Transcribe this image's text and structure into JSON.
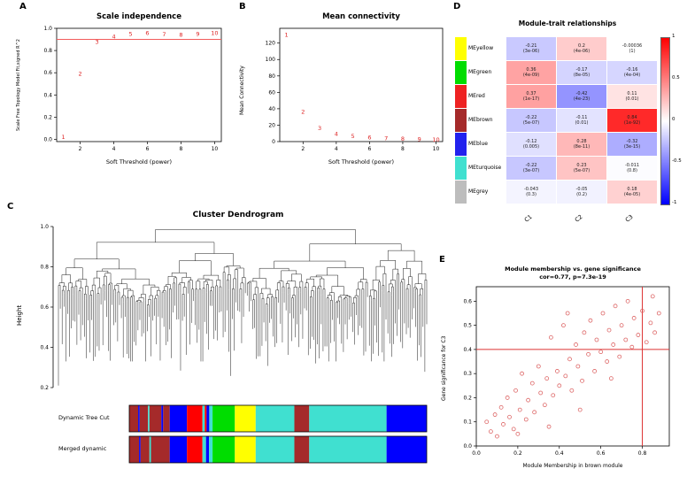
{
  "panels": {
    "A": {
      "label": "A"
    },
    "B": {
      "label": "B"
    },
    "C": {
      "label": "C"
    },
    "D": {
      "label": "D"
    },
    "E": {
      "label": "E"
    }
  },
  "chart_data": [
    {
      "id": "A",
      "type": "scatter",
      "title": "Scale independence",
      "xlabel": "Soft Threshold (power)",
      "ylabel": "Scale Free Topology Model Fit,signed R^2",
      "x": [
        1,
        2,
        3,
        4,
        5,
        6,
        7,
        8,
        9,
        10
      ],
      "y": [
        0.02,
        0.59,
        0.875,
        0.925,
        0.95,
        0.955,
        0.945,
        0.94,
        0.95,
        0.955
      ],
      "point_labels": [
        "1",
        "2",
        "3",
        "4",
        "5",
        "6",
        "7",
        "8",
        "9",
        "10"
      ],
      "point_color": "#dd2222",
      "hline": 0.9,
      "line_color": "#f25c5c",
      "xlim": [
        0.6,
        10.4
      ],
      "ylim": [
        -0.02,
        1.0
      ],
      "xticks": [
        2,
        4,
        6,
        8,
        10
      ],
      "yticks": [
        0,
        0.2,
        0.4,
        0.6,
        0.8,
        1.0
      ],
      "ytick_labels": [
        "0.0",
        "0.2",
        "0.4",
        "0.6",
        "0.8",
        "1.0"
      ]
    },
    {
      "id": "B",
      "type": "scatter",
      "title": "Mean connectivity",
      "xlabel": "Soft Threshold (power)",
      "ylabel": "Mean Connectivity",
      "x": [
        1,
        2,
        3,
        4,
        5,
        6,
        7,
        8,
        9,
        10
      ],
      "y": [
        130,
        36,
        16,
        9,
        6.5,
        5,
        4,
        3.2,
        2.6,
        2.2
      ],
      "point_labels": [
        "1",
        "2",
        "3",
        "4",
        "5",
        "6",
        "7",
        "8",
        "9",
        "10"
      ],
      "point_color": "#dd2222",
      "xlim": [
        0.6,
        10.4
      ],
      "ylim": [
        0,
        138
      ],
      "xticks": [
        2,
        4,
        6,
        8,
        10
      ],
      "yticks": [
        0,
        20,
        40,
        60,
        80,
        100,
        120
      ],
      "ytick_labels": [
        "0",
        "20",
        "40",
        "60",
        "80",
        "100",
        "120"
      ]
    },
    {
      "id": "C",
      "type": "dendrogram",
      "title": "Cluster Dendrogram",
      "ylabel": "Height",
      "ylim": [
        0.2,
        1.0
      ],
      "yticks": [
        0.2,
        0.4,
        0.6,
        0.8,
        1.0
      ],
      "ytick_labels": [
        "0.2",
        "0.4",
        "0.6",
        "0.8",
        "1.0"
      ],
      "leaves": 200,
      "seed": 11,
      "bands": [
        {
          "label": "Dynamic Tree Cut",
          "segments": [
            {
              "c": "#a52a2a",
              "w": 0.03
            },
            {
              "c": "#0000ff",
              "w": 0.005
            },
            {
              "c": "#a52a2a",
              "w": 0.028
            },
            {
              "c": "#40e0d0",
              "w": 0.005
            },
            {
              "c": "#a52a2a",
              "w": 0.04
            },
            {
              "c": "#0000ff",
              "w": 0.006
            },
            {
              "c": "#a52a2a",
              "w": 0.022
            },
            {
              "c": "#0000ff",
              "w": 0.058
            },
            {
              "c": "#ff0000",
              "w": 0.052
            },
            {
              "c": "#40e0d0",
              "w": 0.008
            },
            {
              "c": "#ff0000",
              "w": 0.006
            },
            {
              "c": "#0000ff",
              "w": 0.009
            },
            {
              "c": "#40e0d0",
              "w": 0.011
            },
            {
              "c": "#00dd00",
              "w": 0.075
            },
            {
              "c": "#ffff00",
              "w": 0.07
            },
            {
              "c": "#40e0d0",
              "w": 0.13
            },
            {
              "c": "#a52a2a",
              "w": 0.05
            },
            {
              "c": "#40e0d0",
              "w": 0.26
            },
            {
              "c": "#0000ff",
              "w": 0.135
            }
          ]
        },
        {
          "label": "Merged dynamic",
          "segments": [
            {
              "c": "#a52a2a",
              "w": 0.033
            },
            {
              "c": "#0000ff",
              "w": 0.005
            },
            {
              "c": "#a52a2a",
              "w": 0.03
            },
            {
              "c": "#40e0d0",
              "w": 0.005
            },
            {
              "c": "#a52a2a",
              "w": 0.063
            },
            {
              "c": "#0000ff",
              "w": 0.058
            },
            {
              "c": "#ff0000",
              "w": 0.052
            },
            {
              "c": "#40e0d0",
              "w": 0.012
            },
            {
              "c": "#0000ff",
              "w": 0.01
            },
            {
              "c": "#40e0d0",
              "w": 0.012
            },
            {
              "c": "#00dd00",
              "w": 0.075
            },
            {
              "c": "#ffff00",
              "w": 0.07
            },
            {
              "c": "#40e0d0",
              "w": 0.13
            },
            {
              "c": "#a52a2a",
              "w": 0.05
            },
            {
              "c": "#40e0d0",
              "w": 0.26
            },
            {
              "c": "#0000ff",
              "w": 0.135
            }
          ]
        }
      ]
    },
    {
      "id": "D",
      "type": "heatmap",
      "title": "Module-trait relationships",
      "columns": [
        "C1",
        "C2",
        "C3"
      ],
      "rows": [
        {
          "name": "MEyellow",
          "color": "#ffff00",
          "values": [
            -0.21,
            0.2,
            -0.00036
          ],
          "p": [
            "3e-06",
            "4e-06",
            "1"
          ]
        },
        {
          "name": "MEgreen",
          "color": "#00dd00",
          "values": [
            0.36,
            -0.17,
            -0.16
          ],
          "p": [
            "4e-09",
            "8e-05",
            "4e-04"
          ]
        },
        {
          "name": "MEred",
          "color": "#ee2222",
          "values": [
            0.37,
            -0.42,
            0.11
          ],
          "p": [
            "1e-17",
            "4e-23",
            "0.01"
          ]
        },
        {
          "name": "MEbrown",
          "color": "#a52a2a",
          "values": [
            -0.22,
            -0.11,
            0.84
          ],
          "p": [
            "5e-07",
            "0.01",
            "1e-92"
          ]
        },
        {
          "name": "MEblue",
          "color": "#2222ee",
          "values": [
            -0.12,
            0.28,
            -0.32
          ],
          "p": [
            "0.005",
            "8e-11",
            "3e-15"
          ]
        },
        {
          "name": "MEturquoise",
          "color": "#40e0d0",
          "values": [
            -0.22,
            0.23,
            -0.011
          ],
          "p": [
            "3e-07",
            "5e-07",
            "0.8"
          ]
        },
        {
          "name": "MEgrey",
          "color": "#bdbdbd",
          "values": [
            -0.043,
            -0.05,
            0.18
          ],
          "p": [
            "0.3",
            "0.2",
            "4e-05"
          ]
        }
      ],
      "scale": [
        -1,
        1
      ],
      "colorbar_ticks": [
        "1",
        "0.5",
        "0",
        "-0.5",
        "-1"
      ]
    },
    {
      "id": "E",
      "type": "scatter",
      "title": "Module membership vs. gene significance",
      "subtitle": "cor=0.77, p=7.3e-19",
      "xlabel": "Module Membership in brown module",
      "ylabel": "Gene significance for C3",
      "point_color": "#dd6666",
      "vline": 0.8,
      "hline": 0.4,
      "line_color": "#dd3333",
      "xlim": [
        0,
        0.93
      ],
      "ylim": [
        0,
        0.66
      ],
      "xticks": [
        0,
        0.2,
        0.4,
        0.6,
        0.8
      ],
      "xtick_labels": [
        "0.0",
        "0.2",
        "0.4",
        "0.6",
        "0.8"
      ],
      "yticks": [
        0,
        0.1,
        0.2,
        0.3,
        0.4,
        0.5,
        0.6
      ],
      "ytick_labels": [
        "0.0",
        "0.1",
        "0.2",
        "0.3",
        "0.4",
        "0.5",
        "0.6"
      ],
      "points": [
        [
          0.05,
          0.1
        ],
        [
          0.07,
          0.06
        ],
        [
          0.09,
          0.13
        ],
        [
          0.1,
          0.04
        ],
        [
          0.12,
          0.16
        ],
        [
          0.13,
          0.09
        ],
        [
          0.15,
          0.2
        ],
        [
          0.16,
          0.12
        ],
        [
          0.18,
          0.07
        ],
        [
          0.19,
          0.23
        ],
        [
          0.2,
          0.05
        ],
        [
          0.21,
          0.15
        ],
        [
          0.22,
          0.3
        ],
        [
          0.24,
          0.11
        ],
        [
          0.25,
          0.19
        ],
        [
          0.27,
          0.26
        ],
        [
          0.28,
          0.14
        ],
        [
          0.3,
          0.33
        ],
        [
          0.31,
          0.22
        ],
        [
          0.33,
          0.17
        ],
        [
          0.34,
          0.28
        ],
        [
          0.35,
          0.08
        ],
        [
          0.36,
          0.45
        ],
        [
          0.37,
          0.21
        ],
        [
          0.39,
          0.31
        ],
        [
          0.4,
          0.25
        ],
        [
          0.42,
          0.5
        ],
        [
          0.43,
          0.29
        ],
        [
          0.44,
          0.55
        ],
        [
          0.45,
          0.36
        ],
        [
          0.46,
          0.23
        ],
        [
          0.48,
          0.42
        ],
        [
          0.49,
          0.33
        ],
        [
          0.5,
          0.15
        ],
        [
          0.51,
          0.27
        ],
        [
          0.52,
          0.47
        ],
        [
          0.54,
          0.38
        ],
        [
          0.55,
          0.52
        ],
        [
          0.57,
          0.31
        ],
        [
          0.58,
          0.44
        ],
        [
          0.6,
          0.39
        ],
        [
          0.61,
          0.55
        ],
        [
          0.63,
          0.35
        ],
        [
          0.64,
          0.48
        ],
        [
          0.65,
          0.28
        ],
        [
          0.66,
          0.42
        ],
        [
          0.67,
          0.58
        ],
        [
          0.69,
          0.37
        ],
        [
          0.7,
          0.5
        ],
        [
          0.72,
          0.44
        ],
        [
          0.73,
          0.6
        ],
        [
          0.75,
          0.41
        ],
        [
          0.76,
          0.53
        ],
        [
          0.78,
          0.46
        ],
        [
          0.8,
          0.56
        ],
        [
          0.82,
          0.43
        ],
        [
          0.84,
          0.51
        ],
        [
          0.85,
          0.62
        ],
        [
          0.86,
          0.47
        ],
        [
          0.88,
          0.55
        ]
      ]
    }
  ]
}
